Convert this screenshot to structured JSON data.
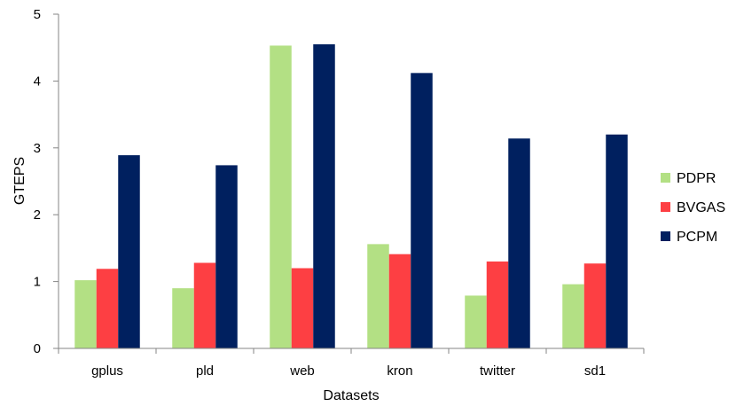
{
  "chart_data": {
    "type": "bar",
    "title": "",
    "xlabel": "Datasets",
    "ylabel": "GTEPS",
    "ylim": [
      0,
      5
    ],
    "yticks": [
      0,
      1,
      2,
      3,
      4,
      5
    ],
    "grid": false,
    "legend_position": "right",
    "categories": [
      "gplus",
      "pld",
      "web",
      "kron",
      "twitter",
      "sd1"
    ],
    "series": [
      {
        "name": "PDPR",
        "color": "#b3e084",
        "values": [
          1.02,
          0.9,
          4.53,
          1.56,
          0.79,
          0.96
        ]
      },
      {
        "name": "BVGAS",
        "color": "#fd3f43",
        "values": [
          1.19,
          1.28,
          1.2,
          1.41,
          1.3,
          1.27
        ]
      },
      {
        "name": "PCPM",
        "color": "#00205f",
        "values": [
          2.89,
          2.74,
          4.55,
          4.12,
          3.14,
          3.2
        ]
      }
    ]
  }
}
